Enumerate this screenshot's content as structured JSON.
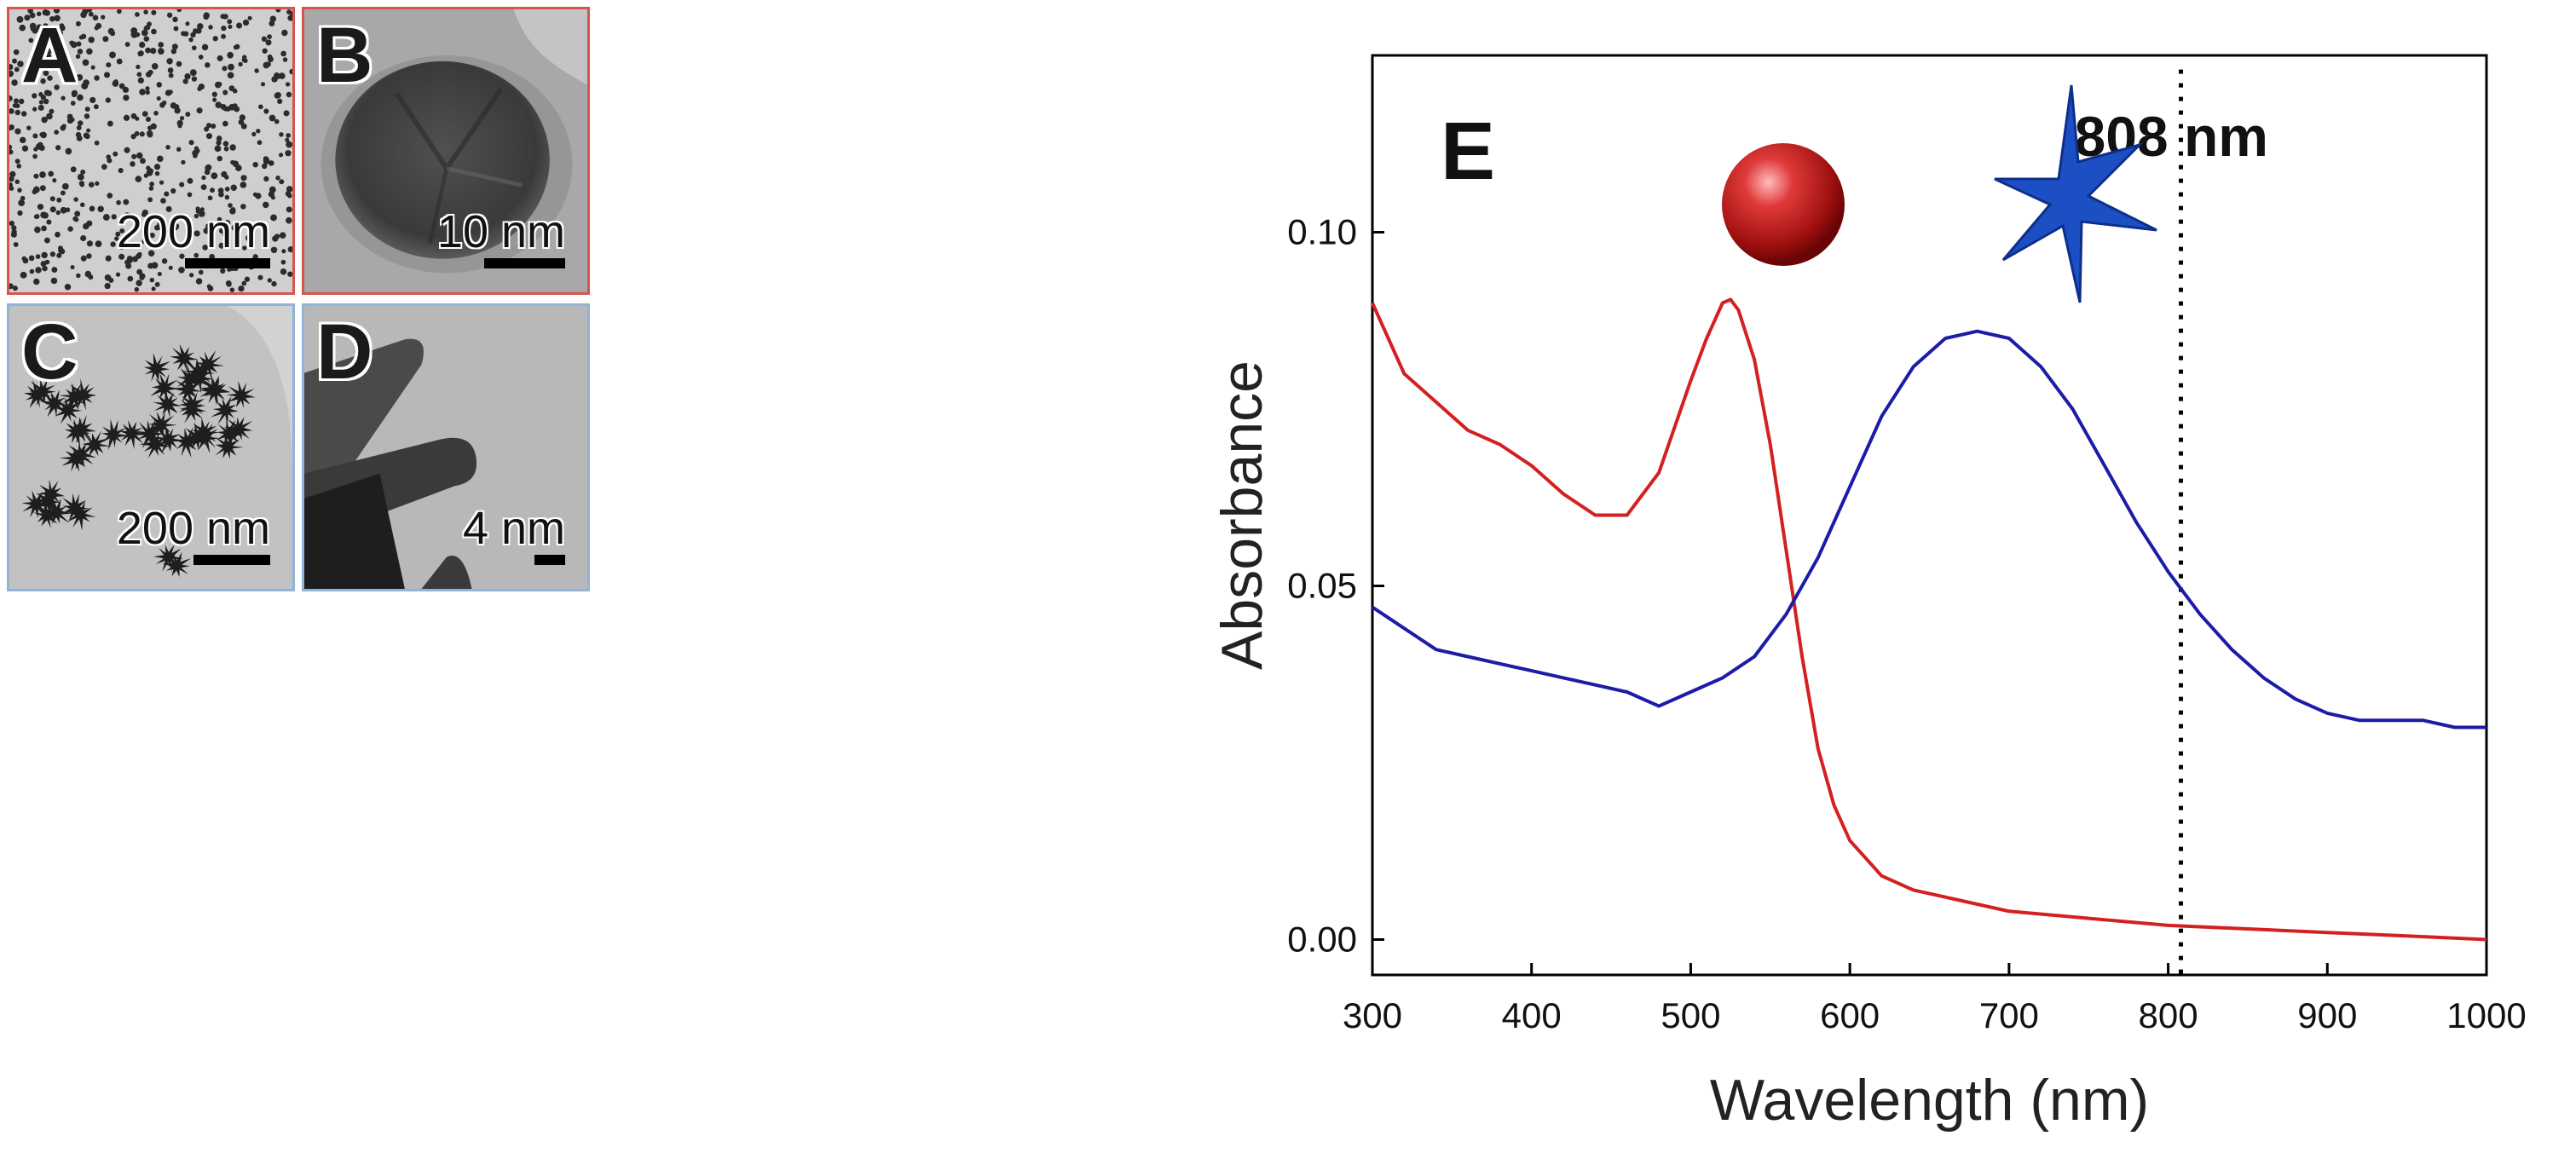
{
  "panels": {
    "a": {
      "label": "A",
      "scale": "200 nm",
      "frame_color": "#d9534f"
    },
    "b": {
      "label": "B",
      "scale": "10 nm",
      "frame_color": "#d9534f"
    },
    "c": {
      "label": "C",
      "scale": "200 nm",
      "frame_color": "#8fb3d9"
    },
    "d": {
      "label": "D",
      "scale": "4 nm",
      "frame_color": "#8fb3d9"
    }
  },
  "chart_data": {
    "type": "line",
    "panel_label": "E",
    "title": "",
    "xlabel": "Wavelength (nm)",
    "ylabel": "Absorbance",
    "xlim": [
      300,
      1000
    ],
    "ylim": [
      -0.005,
      0.125
    ],
    "xticks": [
      "300",
      "400",
      "500",
      "600",
      "700",
      "800",
      "900",
      "1000"
    ],
    "yticks": [
      "0.00",
      "0.05",
      "0.10"
    ],
    "annotation": "808 nm",
    "marker_x": 808,
    "series": [
      {
        "name": "gold nanospheres",
        "color": "#d42020",
        "x": [
          300,
          320,
          340,
          360,
          380,
          400,
          420,
          440,
          460,
          480,
          500,
          510,
          520,
          525,
          530,
          540,
          550,
          560,
          570,
          580,
          590,
          600,
          620,
          640,
          660,
          680,
          700,
          750,
          800,
          850,
          900,
          950,
          1000
        ],
        "y": [
          0.09,
          0.08,
          0.076,
          0.072,
          0.07,
          0.067,
          0.063,
          0.06,
          0.06,
          0.066,
          0.079,
          0.085,
          0.09,
          0.0905,
          0.089,
          0.082,
          0.07,
          0.055,
          0.04,
          0.027,
          0.019,
          0.014,
          0.009,
          0.007,
          0.006,
          0.005,
          0.004,
          0.003,
          0.002,
          0.0015,
          0.001,
          0.0005,
          0.0
        ]
      },
      {
        "name": "gold nanostars",
        "color": "#1c1ca8",
        "x": [
          300,
          320,
          340,
          360,
          380,
          400,
          420,
          440,
          460,
          480,
          500,
          520,
          540,
          560,
          580,
          600,
          620,
          640,
          660,
          680,
          700,
          720,
          740,
          760,
          780,
          800,
          820,
          840,
          860,
          880,
          900,
          920,
          940,
          960,
          980,
          1000
        ],
        "y": [
          0.047,
          0.044,
          0.041,
          0.04,
          0.039,
          0.038,
          0.037,
          0.036,
          0.035,
          0.033,
          0.035,
          0.037,
          0.04,
          0.046,
          0.054,
          0.064,
          0.074,
          0.081,
          0.085,
          0.086,
          0.085,
          0.081,
          0.075,
          0.067,
          0.059,
          0.052,
          0.046,
          0.041,
          0.037,
          0.034,
          0.032,
          0.031,
          0.031,
          0.031,
          0.03,
          0.03
        ]
      }
    ]
  }
}
